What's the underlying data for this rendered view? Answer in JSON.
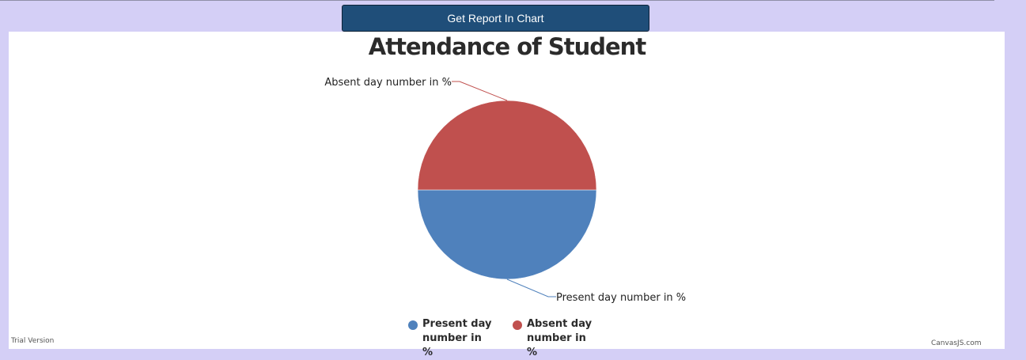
{
  "report_button": {
    "label": "Get Report In Chart"
  },
  "chart_data": {
    "type": "pie",
    "title": "Attendance of Student",
    "slices": [
      {
        "name": "Present day number in %",
        "legend_line1": "Present day",
        "legend_line2": "number in %",
        "value": 50,
        "color": "#4f81bc"
      },
      {
        "name": "Absent day number in %",
        "legend_line1": "Absent day",
        "legend_line2": "number in %",
        "value": 50,
        "color": "#c0504e"
      }
    ],
    "legend_placement": "bottom"
  },
  "footer": {
    "trial": "Trial Version",
    "credit": "CanvasJS.com"
  },
  "colors": {
    "page_background": "#d4cff6",
    "button_background": "#1f4e79"
  }
}
